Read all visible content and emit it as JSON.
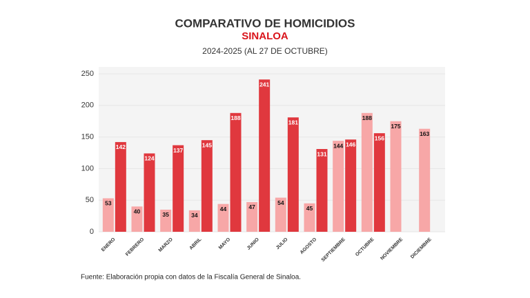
{
  "chart_data": {
    "type": "bar",
    "title": "COMPARATIVO DE HOMICIDIOS",
    "subtitle": "SINALOA",
    "note": "2024-2025 (AL 27 DE OCTUBRE)",
    "source": "Fuente: Elaboración propia con datos de la Fiscalía General de Sinaloa.",
    "categories": [
      "ENERO",
      "FEBRERO",
      "MARZO",
      "ABRIL",
      "MAYO",
      "JUNIO",
      "JULIO",
      "AGOSTO",
      "SEPTIEMBRE",
      "OCTUBRE",
      "NOVIEMBRE",
      "DICIEMBRE"
    ],
    "series": [
      {
        "color": "#f7a7a7",
        "values": [
          53,
          40,
          35,
          34,
          44,
          47,
          54,
          45,
          144,
          188,
          175,
          163
        ]
      },
      {
        "color": "#e0383e",
        "values": [
          142,
          124,
          137,
          145,
          188,
          241,
          181,
          131,
          146,
          156,
          null,
          null
        ]
      }
    ],
    "ylim": [
      0,
      250
    ],
    "yticks": [
      0,
      50,
      100,
      150,
      200,
      250
    ],
    "grid": true
  }
}
